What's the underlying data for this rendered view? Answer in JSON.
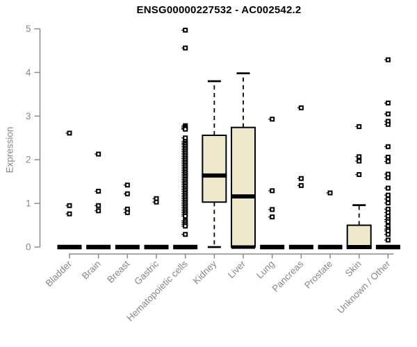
{
  "chart_data": {
    "type": "boxplot",
    "title": "ENSG00000227532 - AC002542.2",
    "ylabel": "Expression",
    "xlabel": "",
    "ylim": [
      0,
      5
    ],
    "yticks": [
      0,
      1,
      2,
      3,
      4,
      5
    ],
    "grid": false,
    "legend": "none",
    "colors": {
      "box_fill": "#EEE8CD",
      "box_border": "#000000",
      "median": "#000000",
      "outlier": "#000000",
      "axis": "#8A8A8A",
      "tick_text": "#878787",
      "title_text": "#000000",
      "background": "#FFFFFF"
    },
    "groups": [
      {
        "label": "Bladder",
        "box": {
          "whisker_low": 0,
          "q1": 0,
          "median": 0,
          "q3": 0,
          "whisker_high": 0
        },
        "outliers": [
          2.61,
          0.95,
          0.76
        ]
      },
      {
        "label": "Brain",
        "box": {
          "whisker_low": 0,
          "q1": 0,
          "median": 0,
          "q3": 0,
          "whisker_high": 0
        },
        "outliers": [
          2.13,
          1.28,
          0.95,
          0.83
        ]
      },
      {
        "label": "Breast",
        "box": {
          "whisker_low": 0,
          "q1": 0,
          "median": 0,
          "q3": 0,
          "whisker_high": 0
        },
        "outliers": [
          1.42,
          1.22,
          0.87,
          0.79
        ]
      },
      {
        "label": "Gastric",
        "box": {
          "whisker_low": 0,
          "q1": 0,
          "median": 0,
          "q3": 0,
          "whisker_high": 0
        },
        "outliers": [
          1.11,
          1.03
        ]
      },
      {
        "label": "Hematopoietic cells",
        "box": {
          "whisker_low": 0,
          "q1": 0,
          "median": 0,
          "q3": 0,
          "whisker_high": 0
        },
        "outliers": [
          4.97,
          4.56,
          2.78,
          2.75,
          2.72,
          2.7,
          2.5,
          2.42,
          2.38,
          2.35,
          2.31,
          2.27,
          2.23,
          2.19,
          2.15,
          2.11,
          2.07,
          2.03,
          1.99,
          1.95,
          1.91,
          1.87,
          1.83,
          1.79,
          1.75,
          1.71,
          1.67,
          1.63,
          1.59,
          1.55,
          1.51,
          1.47,
          1.43,
          1.39,
          1.35,
          1.31,
          1.27,
          1.23,
          1.19,
          1.15,
          1.11,
          1.07,
          1.03,
          0.99,
          0.95,
          0.91,
          0.87,
          0.83,
          0.79,
          0.75,
          0.71,
          0.6,
          0.56,
          0.52,
          0.48,
          0.29
        ]
      },
      {
        "label": "Kidney",
        "box": {
          "whisker_low": 0,
          "q1": 1.03,
          "median": 1.64,
          "q3": 2.56,
          "whisker_high": 3.8
        },
        "outliers": []
      },
      {
        "label": "Liver",
        "box": {
          "whisker_low": 0,
          "q1": 0,
          "median": 1.16,
          "q3": 2.74,
          "whisker_high": 3.98
        },
        "outliers": []
      },
      {
        "label": "Lung",
        "box": {
          "whisker_low": 0,
          "q1": 0,
          "median": 0,
          "q3": 0,
          "whisker_high": 0
        },
        "outliers": [
          2.93,
          1.29,
          0.86,
          0.69
        ]
      },
      {
        "label": "Pancreas",
        "box": {
          "whisker_low": 0,
          "q1": 0,
          "median": 0,
          "q3": 0,
          "whisker_high": 0
        },
        "outliers": [
          3.19,
          1.57,
          1.41
        ]
      },
      {
        "label": "Prostate",
        "box": {
          "whisker_low": 0,
          "q1": 0,
          "median": 0,
          "q3": 0,
          "whisker_high": 0
        },
        "outliers": [
          1.24
        ]
      },
      {
        "label": "Skin",
        "box": {
          "whisker_low": 0,
          "q1": 0,
          "median": 0,
          "q3": 0.5,
          "whisker_high": 0.96
        },
        "outliers": [
          2.76,
          2.07,
          1.97,
          1.66
        ]
      },
      {
        "label": "Unknown / Other",
        "box": {
          "whisker_low": 0,
          "q1": 0,
          "median": 0,
          "q3": 0,
          "whisker_high": 0
        },
        "outliers": [
          4.29,
          3.3,
          3.05,
          2.88,
          2.81,
          2.3,
          2.06,
          1.96,
          1.67,
          1.59,
          1.35,
          1.19,
          1.1,
          1.01,
          0.87,
          0.79,
          0.71,
          0.63,
          0.58,
          0.48,
          0.41,
          0.37,
          0.29,
          0.16
        ]
      }
    ]
  }
}
